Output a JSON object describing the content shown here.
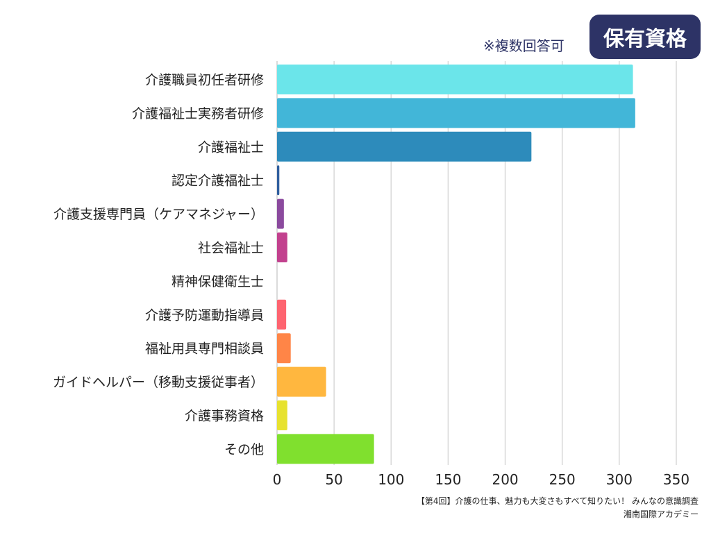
{
  "chart_data": {
    "type": "bar",
    "orientation": "horizontal",
    "title": "保有資格",
    "subtitle": "※複数回答可",
    "categories": [
      "介護職員初任者研修",
      "介護福祉士実務者研修",
      "介護福祉士",
      "認定介護福祉士",
      "介護支援専門員（ケアマネジャー）",
      "社会福祉士",
      "精神保健衛生士",
      "介護予防運動指導員",
      "福祉用具専門相談員",
      "ガイドヘルパー（移動支援従事者）",
      "介護事務資格",
      "その他"
    ],
    "values": [
      312,
      314,
      223,
      2,
      6,
      9,
      0,
      8,
      12,
      43,
      9,
      85
    ],
    "colors": [
      "#6be5ea",
      "#42b6d8",
      "#2d8bbb",
      "#2f5e9e",
      "#8b4a9e",
      "#c2418e",
      "#e04a7a",
      "#fe6470",
      "#ff8547",
      "#ffb73f",
      "#e7e22f",
      "#80e02e"
    ],
    "xlim": [
      0,
      350
    ],
    "xticks": [
      0,
      50,
      100,
      150,
      200,
      250,
      300,
      350
    ],
    "grid": true,
    "xlabel": "",
    "ylabel": ""
  },
  "source": {
    "line1": "【第4回】介護の仕事、魅力も大変さもすべて知りたい！ みんなの意識調査",
    "line2": "湘南国際アカデミー"
  }
}
